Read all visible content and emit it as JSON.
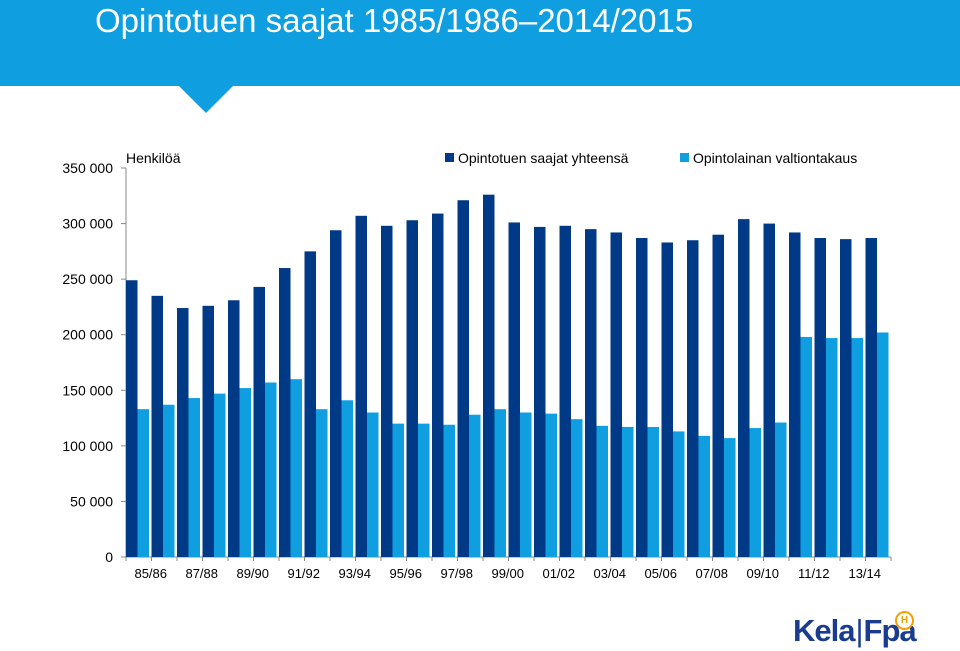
{
  "page": {
    "title": "Opintotuen saajat 1985/1986–2014/2015"
  },
  "logo": {
    "left": "Kela",
    "separator": "|",
    "right": "Fpa",
    "badge": "H"
  },
  "colors": {
    "header": "#0f9fe0",
    "series_total": "#003a86",
    "series_loan": "#0f9fe0",
    "logo": "#1a3c8f",
    "logo_badge": "#f5a000"
  },
  "chart_data": {
    "type": "bar",
    "ylabel": "Henkilöä",
    "ylim": [
      0,
      350000
    ],
    "yticks": [
      0,
      50000,
      100000,
      150000,
      200000,
      250000,
      300000,
      350000
    ],
    "ytick_labels": [
      "0",
      "50 000",
      "100 000",
      "150 000",
      "200 000",
      "250 000",
      "300 000",
      "350 000"
    ],
    "grid": false,
    "legend_position": "top-right",
    "categories": [
      "85/86",
      "86/87",
      "87/88",
      "88/89",
      "89/90",
      "90/91",
      "91/92",
      "92/93",
      "93/94",
      "94/95",
      "95/96",
      "96/97",
      "97/98",
      "98/99",
      "99/00",
      "00/01",
      "01/02",
      "02/03",
      "03/04",
      "04/05",
      "05/06",
      "06/07",
      "07/08",
      "08/09",
      "09/10",
      "10/11",
      "11/12",
      "12/13",
      "13/14",
      "14/15"
    ],
    "x_tick_labels": [
      "85/86",
      "87/88",
      "89/90",
      "91/92",
      "93/94",
      "95/96",
      "97/98",
      "99/00",
      "01/02",
      "03/04",
      "05/06",
      "07/08",
      "09/10",
      "11/12",
      "13/14"
    ],
    "series": [
      {
        "name": "Opintotuen saajat yhteensä",
        "values": [
          249000,
          235000,
          224000,
          226000,
          231000,
          243000,
          260000,
          275000,
          294000,
          307000,
          298000,
          303000,
          309000,
          321000,
          326000,
          301000,
          297000,
          298000,
          295000,
          292000,
          287000,
          283000,
          285000,
          290000,
          304000,
          300000,
          292000,
          287000,
          286000,
          287000
        ]
      },
      {
        "name": "Opintolainan valtiontakaus",
        "values": [
          133000,
          137000,
          143000,
          147000,
          152000,
          157000,
          160000,
          133000,
          141000,
          130000,
          120000,
          120000,
          119000,
          128000,
          133000,
          130000,
          129000,
          124000,
          118000,
          117000,
          117000,
          113000,
          109000,
          107000,
          116000,
          121000,
          198000,
          197000,
          197000,
          202000
        ]
      }
    ]
  }
}
